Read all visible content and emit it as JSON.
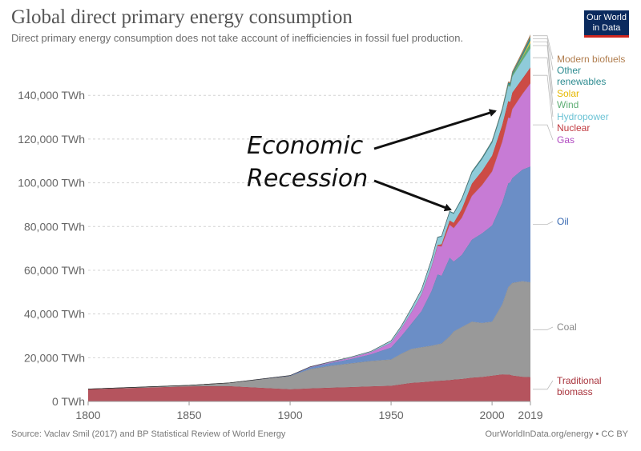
{
  "header": {
    "title": "Global direct primary energy consumption",
    "subtitle": "Direct primary energy consumption does not take account of inefficiencies in fossil fuel production.",
    "logo_line1": "Our World",
    "logo_line2": "in Data"
  },
  "footer": {
    "source": "Source: Vaclav Smil (2017) and BP Statistical Review of World Energy",
    "link": "OurWorldInData.org/energy",
    "license": " • CC BY"
  },
  "annotation": {
    "line1": "Economic",
    "line2": "Recession"
  },
  "chart_data": {
    "type": "area",
    "stacked": true,
    "x": [
      1800,
      1850,
      1870,
      1900,
      1910,
      1920,
      1930,
      1940,
      1950,
      1955,
      1960,
      1965,
      1970,
      1973,
      1975,
      1979,
      1981,
      1985,
      1990,
      1995,
      2000,
      2005,
      2008,
      2009,
      2010,
      2015,
      2019
    ],
    "series": [
      {
        "name": "Traditional biomass",
        "color": "#b5545e",
        "values": [
          5600,
          6900,
          7000,
          5600,
          6000,
          6300,
          6600,
          6900,
          7200,
          7800,
          8500,
          8800,
          9200,
          9400,
          9500,
          9800,
          10000,
          10300,
          10900,
          11200,
          11800,
          12400,
          12300,
          12200,
          11900,
          11300,
          11100
        ]
      },
      {
        "name": "Coal",
        "color": "#999999",
        "values": [
          100,
          500,
          1500,
          6000,
          8800,
          10000,
          10800,
          11600,
          12000,
          14000,
          15500,
          16000,
          16300,
          16700,
          17000,
          20000,
          22000,
          23700,
          25600,
          24700,
          24700,
          32000,
          40000,
          41000,
          42300,
          43700,
          43400
        ]
      },
      {
        "name": "Oil",
        "color": "#6b8ec6",
        "values": [
          0,
          0,
          0,
          200,
          800,
          1300,
          2000,
          3100,
          5500,
          8000,
          11500,
          16500,
          25000,
          32000,
          31000,
          36000,
          32000,
          33000,
          37500,
          41000,
          44000,
          46500,
          47500,
          47000,
          48000,
          51000,
          53000
        ]
      },
      {
        "name": "Gas",
        "color": "#c77bd5",
        "values": [
          0,
          0,
          0,
          50,
          200,
          350,
          600,
          900,
          2200,
          3500,
          5200,
          7500,
          11000,
          13000,
          13400,
          15000,
          15300,
          17000,
          20000,
          22000,
          24700,
          27800,
          30000,
          29400,
          31500,
          34600,
          38000
        ]
      },
      {
        "name": "Nuclear",
        "color": "#cc4b45",
        "values": [
          0,
          0,
          0,
          0,
          0,
          0,
          0,
          0,
          0,
          0,
          0,
          100,
          200,
          500,
          1000,
          2000,
          2400,
          4000,
          5600,
          6500,
          7200,
          7700,
          7600,
          7400,
          7500,
          7000,
          7300
        ]
      },
      {
        "name": "Hydropower",
        "color": "#8fcbd9",
        "values": [
          0,
          0,
          0,
          0,
          100,
          200,
          300,
          400,
          900,
          1100,
          1800,
          2200,
          3100,
          3400,
          3600,
          4000,
          4200,
          4500,
          5000,
          5500,
          6000,
          6500,
          7000,
          7000,
          7400,
          8300,
          8800
        ]
      },
      {
        "name": "Wind",
        "color": "#5fae75",
        "values": [
          0,
          0,
          0,
          0,
          0,
          0,
          0,
          0,
          0,
          0,
          0,
          0,
          0,
          0,
          0,
          0,
          0,
          0,
          0,
          0,
          100,
          200,
          500,
          600,
          700,
          1500,
          2300
        ]
      },
      {
        "name": "Solar",
        "color": "#e6c33a",
        "values": [
          0,
          0,
          0,
          0,
          0,
          0,
          0,
          0,
          0,
          0,
          0,
          0,
          0,
          0,
          0,
          0,
          0,
          0,
          0,
          0,
          0,
          0,
          50,
          80,
          100,
          450,
          1200
        ]
      },
      {
        "name": "Other renewables",
        "color": "#2e8c91",
        "values": [
          0,
          0,
          0,
          0,
          0,
          0,
          0,
          0,
          0,
          0,
          0,
          0,
          100,
          150,
          200,
          250,
          300,
          400,
          500,
          550,
          600,
          700,
          800,
          820,
          850,
          1300,
          1600
        ]
      },
      {
        "name": "Modern biofuels",
        "color": "#b07d4e",
        "values": [
          0,
          0,
          0,
          0,
          0,
          0,
          0,
          0,
          0,
          0,
          0,
          0,
          0,
          0,
          0,
          0,
          0,
          0,
          50,
          80,
          100,
          200,
          500,
          550,
          600,
          900,
          1100
        ]
      }
    ],
    "x_ticks": [
      1800,
      1850,
      1900,
      1950,
      2000,
      2019
    ],
    "y_ticks": [
      0,
      20000,
      40000,
      60000,
      80000,
      100000,
      120000,
      140000
    ],
    "y_tick_labels": [
      "0 TWh",
      "20,000 TWh",
      "40,000 TWh",
      "60,000 TWh",
      "80,000 TWh",
      "100,000 TWh",
      "120,000 TWh",
      "140,000 TWh"
    ],
    "xlim": [
      1800,
      2019
    ],
    "ylim": [
      0,
      158000
    ],
    "grid": "horizontal dashed",
    "legend": "right (labels at series end)",
    "label_colors": {
      "Modern biofuels": "#b07d4e",
      "Other renewables": "#2e8c91",
      "Solar": "#e6b800",
      "Wind": "#5fae75",
      "Hydropower": "#6cc3d5",
      "Nuclear": "#c0393f",
      "Gas": "#b24cc2",
      "Oil": "#3a6bb3",
      "Coal": "#888888",
      "Traditional biomass": "#a9343d"
    }
  }
}
